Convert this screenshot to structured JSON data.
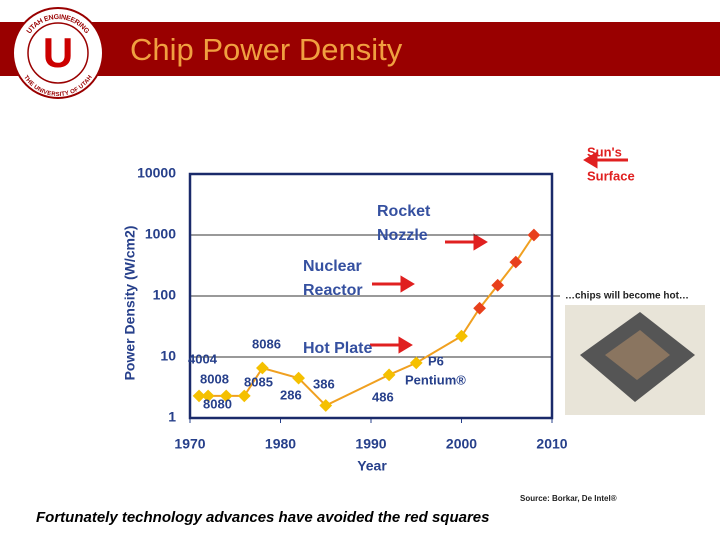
{
  "header": {
    "title": "Chip Power Density",
    "logo_letter": "U",
    "logo_top": "UTAH ENGINEERING",
    "logo_bottom": "THE UNIVERSITY OF UTAH"
  },
  "chart_data": {
    "type": "line",
    "x_label": "Year",
    "y_label": "Power Density (W/cm2)",
    "x": [
      1971,
      1972,
      1974,
      1976,
      1978,
      1982,
      1985,
      1992,
      1995,
      2000,
      2002,
      2004,
      2006,
      2008
    ],
    "series": [
      {
        "color": "#f0a020",
        "values": [
          2.3,
          2.3,
          2.3,
          2.3,
          6.6,
          4.5,
          1.6,
          5.1,
          8,
          22,
          63,
          150,
          360,
          1000
        ],
        "marker_colors": [
          "#f5c000",
          "#f5c000",
          "#f5c000",
          "#f5c000",
          "#f5c000",
          "#f5c000",
          "#f5c000",
          "#f5c000",
          "#f5c000",
          "#f5c000",
          "#e8401c",
          "#e8401c",
          "#e8401c",
          "#e8401c"
        ]
      }
    ],
    "xlim": [
      1970,
      2010
    ],
    "xticks": [
      1970,
      1980,
      1990,
      2000,
      2010
    ],
    "ylim": [
      1,
      10000
    ],
    "yticks": [
      1,
      10,
      100,
      1000,
      10000
    ],
    "log_y": true,
    "grid": true,
    "chip_labels": [
      "4004",
      "8008",
      "8080",
      "8085",
      "8086",
      "286",
      "386",
      "486",
      "P6",
      "Pentium®"
    ],
    "annotations": [
      [
        "Hot Plate"
      ],
      [
        "Nuclear",
        "Reactor"
      ],
      [
        "Rocket",
        "Nozzle"
      ],
      [
        "Sun's",
        "Surface"
      ]
    ],
    "image_caption": "…chips will become hot…",
    "source": "Source: Borkar, De Intel®"
  },
  "footer": {
    "caption": "Fortunately technology advances have avoided the red squares"
  }
}
